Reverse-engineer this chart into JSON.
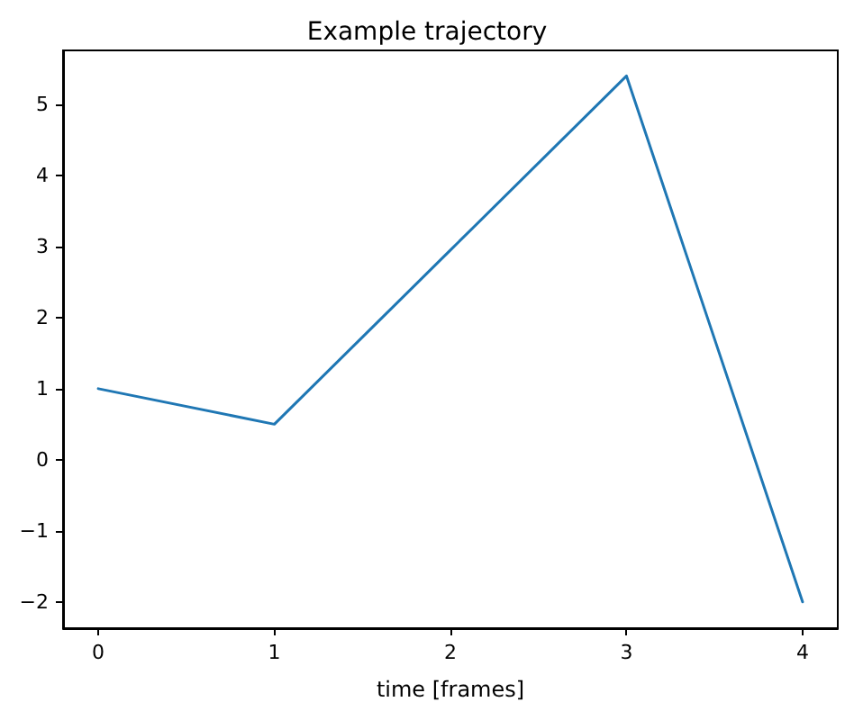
{
  "chart_data": {
    "type": "line",
    "title": "Example trajectory",
    "xlabel": "time [frames]",
    "x": [
      0,
      1,
      2,
      3,
      4
    ],
    "series": [
      {
        "color": "#1f77b4",
        "values": [
          1,
          0.5,
          2.95,
          5.4,
          -2
        ]
      }
    ],
    "xlim": [
      -0.2,
      4.2
    ],
    "xticks": [
      0,
      1,
      2,
      3,
      4
    ],
    "ylim": [
      -2.37,
      5.76
    ],
    "yticks": [
      -2,
      -1,
      0,
      1,
      2,
      3,
      4,
      5
    ],
    "marker": "none",
    "line_style": "solid"
  }
}
